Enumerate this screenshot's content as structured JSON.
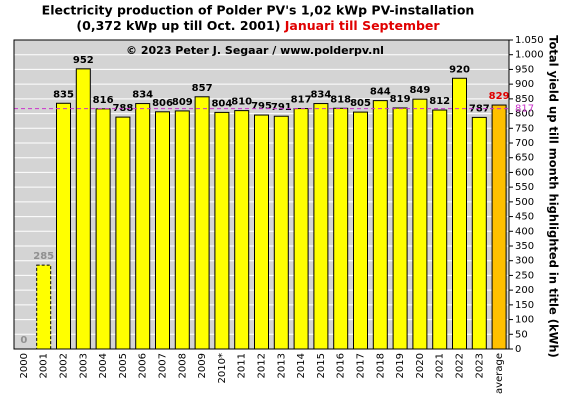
{
  "chart_data": {
    "type": "bar",
    "title": "Electricity production  of Polder  PV's  1,02 kWp PV-installation",
    "subtitle": "(0,372 kWp up till Oct. 2001)",
    "subtitle_highlight": "Januari till September",
    "subtitle_highlight_color": "#e00000",
    "annotation": "© 2023 Peter J. Segaar / www.polderpv.nl",
    "y_label": "Total yield up till month highlighted in title (kWh)",
    "categories": [
      "2000",
      "2001",
      "2002",
      "2003",
      "2004",
      "2005",
      "2006",
      "2007",
      "2008",
      "2009",
      "2010*",
      "2011",
      "2012",
      "2013",
      "2014",
      "2015",
      "2016",
      "2017",
      "2018",
      "2019",
      "2020",
      "2021",
      "2022",
      "2023",
      "average"
    ],
    "values": [
      0,
      285,
      835,
      952,
      816,
      788,
      834,
      806,
      809,
      857,
      804,
      810,
      795,
      791,
      817,
      834,
      818,
      805,
      844,
      819,
      849,
      812,
      920,
      787,
      829
    ],
    "colors": [
      "#ffff00",
      "#ffff00",
      "#ffff00",
      "#ffff00",
      "#ffff00",
      "#ffff00",
      "#ffff00",
      "#ffff00",
      "#ffff00",
      "#ffff00",
      "#ffff00",
      "#ffff00",
      "#ffff00",
      "#ffff00",
      "#ffff00",
      "#ffff00",
      "#ffff00",
      "#ffff00",
      "#ffff00",
      "#ffff00",
      "#ffff00",
      "#ffff00",
      "#ffff00",
      "#ffff00",
      "#ffc000"
    ],
    "label_colors": [
      "#909090",
      "#909090",
      "#000000",
      "#000000",
      "#000000",
      "#000000",
      "#000000",
      "#000000",
      "#000000",
      "#000000",
      "#000000",
      "#000000",
      "#000000",
      "#000000",
      "#000000",
      "#000000",
      "#000000",
      "#000000",
      "#000000",
      "#000000",
      "#000000",
      "#000000",
      "#000000",
      "#000000",
      "#e00000"
    ],
    "outline_styles": [
      "dashed",
      "dashed",
      "solid",
      "solid",
      "solid",
      "solid",
      "solid",
      "solid",
      "solid",
      "solid",
      "solid",
      "solid",
      "solid",
      "solid",
      "solid",
      "solid",
      "solid",
      "solid",
      "solid",
      "solid",
      "solid",
      "solid",
      "solid",
      "solid",
      "solid"
    ],
    "reference_line": {
      "value": 817,
      "color": "#cc33cc"
    },
    "ylim": [
      0,
      1050
    ],
    "yticks": [
      0,
      50,
      100,
      150,
      200,
      250,
      300,
      350,
      400,
      450,
      500,
      550,
      600,
      650,
      700,
      750,
      800,
      850,
      900,
      950,
      {
        "value": 1000,
        "label": "1.000"
      },
      {
        "value": 1050,
        "label": "1.050"
      }
    ],
    "grid": true,
    "background": "#d4d4d4"
  }
}
